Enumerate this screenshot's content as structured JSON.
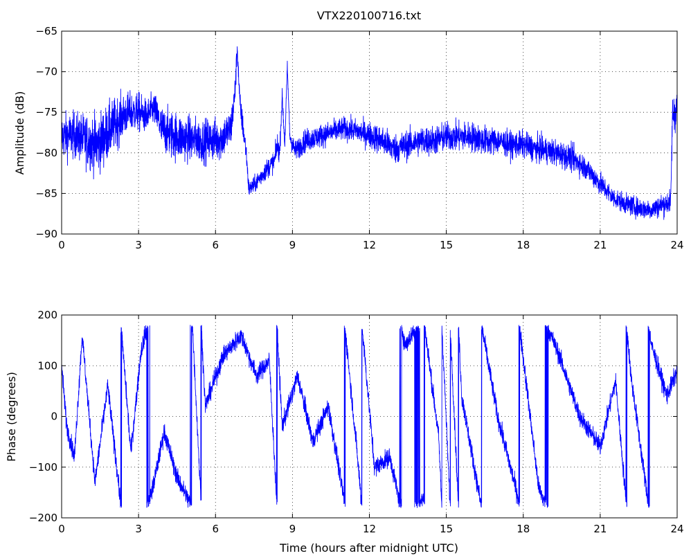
{
  "chart_data": [
    {
      "type": "line",
      "title": "VTX220100716.txt",
      "xlabel": "",
      "ylabel": "Amplitude (dB)",
      "xlim": [
        0,
        24
      ],
      "ylim": [
        -90,
        -65
      ],
      "xticks": [
        0,
        3,
        6,
        9,
        12,
        15,
        18,
        21,
        24
      ],
      "yticks": [
        -90,
        -85,
        -80,
        -75,
        -70,
        -65
      ],
      "grid": true,
      "color": "#0000ff",
      "trend": {
        "x": [
          0,
          0.5,
          1.0,
          1.4,
          1.8,
          2.2,
          2.6,
          3.0,
          3.3,
          3.6,
          3.9,
          4.3,
          4.8,
          5.5,
          6.2,
          6.6,
          6.75,
          6.85,
          6.95,
          7.1,
          7.2,
          7.3,
          7.5,
          8.0,
          8.3,
          8.4,
          8.5,
          8.6,
          8.7,
          8.8,
          8.9,
          9.1,
          9.5,
          10.0,
          10.5,
          11.0,
          11.5,
          12.0,
          12.5,
          13.0,
          13.5,
          14.0,
          14.5,
          15.0,
          15.5,
          16.0,
          16.5,
          17.0,
          17.5,
          18.0,
          18.5,
          19.0,
          19.5,
          20.0,
          20.5,
          21.0,
          21.5,
          22.0,
          22.5,
          23.0,
          23.5,
          23.75,
          23.82,
          23.9,
          24.0
        ],
        "y": [
          -78,
          -77.8,
          -78.5,
          -79,
          -77.5,
          -76,
          -75,
          -75,
          -75.5,
          -74.5,
          -77,
          -77.8,
          -78.2,
          -78.5,
          -78.3,
          -77,
          -73,
          -67,
          -74,
          -77.5,
          -80,
          -84.5,
          -84,
          -82,
          -81,
          -79,
          -80,
          -73,
          -79,
          -69.5,
          -78,
          -79.8,
          -78.5,
          -78,
          -77.5,
          -77,
          -77.3,
          -77.8,
          -78.5,
          -79.5,
          -79,
          -78.5,
          -78.5,
          -78,
          -78,
          -78,
          -78.5,
          -78.5,
          -79,
          -79,
          -79.5,
          -79.8,
          -80.2,
          -80.8,
          -82,
          -83.8,
          -85.5,
          -86.3,
          -86.8,
          -87,
          -86.3,
          -86,
          -75,
          -75,
          -74.5
        ],
        "noise": [
          1.4,
          1.4,
          1.6,
          1.8,
          1.7,
          1.5,
          1.2,
          1.2,
          1.0,
          1.0,
          1.3,
          1.5,
          1.4,
          1.3,
          1.3,
          1.2,
          1.0,
          0.6,
          0.8,
          0.8,
          0.6,
          0.5,
          0.5,
          0.6,
          0.6,
          0.8,
          0.6,
          0.4,
          0.6,
          0.4,
          0.6,
          0.6,
          0.7,
          0.7,
          0.7,
          0.7,
          0.7,
          0.8,
          0.9,
          0.9,
          0.9,
          0.9,
          0.9,
          0.9,
          0.9,
          0.9,
          0.9,
          0.8,
          0.8,
          0.8,
          0.8,
          0.8,
          0.8,
          0.8,
          0.7,
          0.7,
          0.6,
          0.6,
          0.6,
          0.6,
          0.7,
          0.7,
          1.2,
          1.2,
          1.2
        ]
      }
    },
    {
      "type": "line",
      "title": "",
      "xlabel": "Time (hours after midnight UTC)",
      "ylabel": "Phase (degrees)",
      "xlim": [
        0,
        24
      ],
      "ylim": [
        -200,
        200
      ],
      "xticks": [
        0,
        3,
        6,
        9,
        12,
        15,
        18,
        21,
        24
      ],
      "yticks": [
        -200,
        -100,
        0,
        100,
        200
      ],
      "grid": true,
      "color": "#0000ff",
      "wrap": [
        -180,
        180
      ],
      "segments": [
        {
          "x0": 0.0,
          "x1": 0.2,
          "v0": 100,
          "v1": -20
        },
        {
          "x0": 0.2,
          "x1": 0.5,
          "v0": -20,
          "v1": -80
        },
        {
          "x0": 0.5,
          "x1": 0.8,
          "v0": -80,
          "v1": 160
        },
        {
          "x0": 0.8,
          "x1": 1.3,
          "v0": 160,
          "v1": -130
        },
        {
          "x0": 1.3,
          "x1": 1.8,
          "v0": -130,
          "v1": 60
        },
        {
          "x0": 1.8,
          "x1": 2.3,
          "v0": 60,
          "v1": -170
        },
        {
          "x0": 2.3,
          "x1": 2.7,
          "v0": -170,
          "v1": -430
        },
        {
          "x0": 2.7,
          "x1": 3.1,
          "v0": -430,
          "v1": -230
        },
        {
          "x0": 3.1,
          "x1": 3.6,
          "v0": -230,
          "v1": -130
        },
        {
          "x0": 3.6,
          "x1": 4.0,
          "v0": -130,
          "v1": -30
        },
        {
          "x0": 4.0,
          "x1": 4.5,
          "v0": -30,
          "v1": -120
        },
        {
          "x0": 4.5,
          "x1": 5.1,
          "v0": -120,
          "v1": -180
        },
        {
          "x0": 5.1,
          "x1": 5.6,
          "v0": -180,
          "v1": -700
        },
        {
          "x0": 5.6,
          "x1": 6.3,
          "v0": -700,
          "v1": -600
        },
        {
          "x0": 6.3,
          "x1": 7.0,
          "v0": -600,
          "v1": -560
        },
        {
          "x0": 7.0,
          "x1": 7.6,
          "v0": -560,
          "v1": -640
        },
        {
          "x0": 7.6,
          "x1": 8.1,
          "v0": -640,
          "v1": -610
        },
        {
          "x0": 8.1,
          "x1": 8.6,
          "v0": -610,
          "v1": -1100
        },
        {
          "x0": 8.6,
          "x1": 9.2,
          "v0": -1100,
          "v1": -1000
        },
        {
          "x0": 9.2,
          "x1": 9.8,
          "v0": -1000,
          "v1": -1130
        },
        {
          "x0": 9.8,
          "x1": 10.4,
          "v0": -1130,
          "v1": -1060
        },
        {
          "x0": 10.4,
          "x1": 11.0,
          "v0": -1060,
          "v1": -1240
        },
        {
          "x0": 11.0,
          "x1": 11.5,
          "v0": -1240,
          "v1": -1500
        },
        {
          "x0": 11.5,
          "x1": 12.2,
          "v0": -1500,
          "v1": -1900
        },
        {
          "x0": 12.2,
          "x1": 12.8,
          "v0": -1900,
          "v1": -1880
        },
        {
          "x0": 12.8,
          "x1": 13.4,
          "v0": -1880,
          "v1": -2020
        },
        {
          "x0": 13.4,
          "x1": 14.1,
          "v0": -2020,
          "v1": -1960
        },
        {
          "x0": 14.1,
          "x1": 14.7,
          "v0": -1960,
          "v1": -2200
        },
        {
          "x0": 14.7,
          "x1": 15.6,
          "v0": -2200,
          "v1": -3200
        },
        {
          "x0": 15.6,
          "x1": 16.3,
          "v0": -3200,
          "v1": -3400
        },
        {
          "x0": 16.3,
          "x1": 17.0,
          "v0": -3400,
          "v1": -3600
        },
        {
          "x0": 17.0,
          "x1": 17.8,
          "v0": -3600,
          "v1": -3760
        },
        {
          "x0": 17.8,
          "x1": 18.6,
          "v0": -3760,
          "v1": -4100
        },
        {
          "x0": 18.6,
          "x1": 19.4,
          "v0": -4100,
          "v1": -4200
        },
        {
          "x0": 19.4,
          "x1": 20.2,
          "v0": -4200,
          "v1": -4320
        },
        {
          "x0": 20.2,
          "x1": 21.0,
          "v0": -4320,
          "v1": -4380
        },
        {
          "x0": 21.0,
          "x1": 21.6,
          "v0": -4380,
          "v1": -4250
        },
        {
          "x0": 21.6,
          "x1": 22.2,
          "v0": -4250,
          "v1": -4600
        },
        {
          "x0": 22.2,
          "x1": 23.0,
          "v0": -4600,
          "v1": -4900
        },
        {
          "x0": 23.0,
          "x1": 23.6,
          "v0": -4900,
          "v1": -5000
        },
        {
          "x0": 23.6,
          "x1": 24.0,
          "v0": -5000,
          "v1": -4950
        }
      ]
    }
  ]
}
